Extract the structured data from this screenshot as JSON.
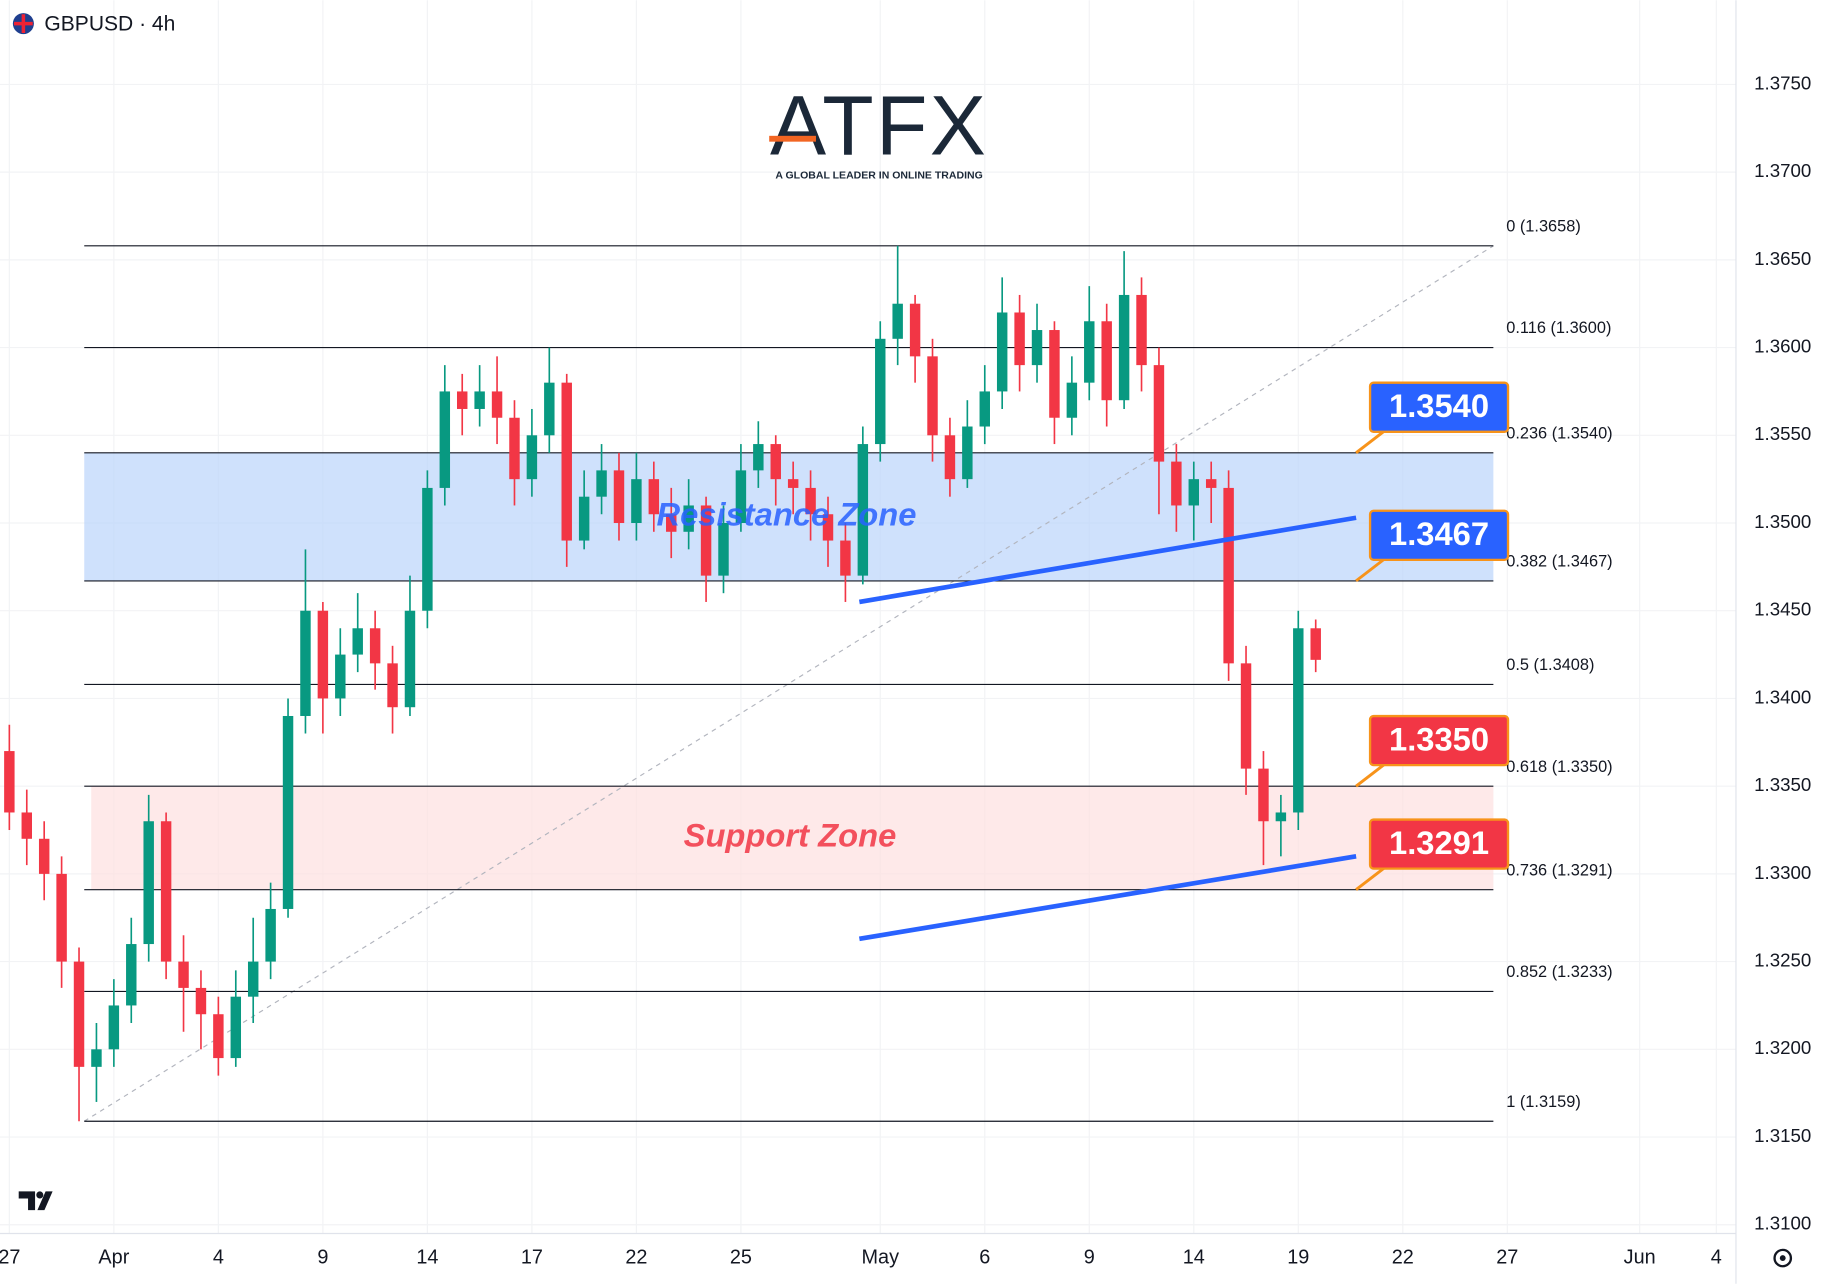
{
  "header": {
    "symbol": "GBPUSD · 4h"
  },
  "logo": {
    "brand": "ATFX",
    "tagline": "A GLOBAL LEADER IN ONLINE TRADING"
  },
  "chart_data": {
    "type": "candlestick",
    "xlim": [
      -0.2685,
      49.564
    ],
    "ylim": [
      1.3095,
      1.3798
    ],
    "grid": true,
    "up_color": "#089981",
    "down_color": "#f23645",
    "xticks": [
      {
        "value": 0,
        "label": "27"
      },
      {
        "value": 3,
        "label": "Apr"
      },
      {
        "value": 6,
        "label": "4"
      },
      {
        "value": 9,
        "label": "9"
      },
      {
        "value": 12,
        "label": "14"
      },
      {
        "value": 15,
        "label": "17"
      },
      {
        "value": 18,
        "label": "22"
      },
      {
        "value": 21,
        "label": "25"
      },
      {
        "value": 25,
        "label": "May"
      },
      {
        "value": 28,
        "label": "6"
      },
      {
        "value": 31,
        "label": "9"
      },
      {
        "value": 34,
        "label": "14"
      },
      {
        "value": 37,
        "label": "19"
      },
      {
        "value": 40,
        "label": "22"
      },
      {
        "value": 43,
        "label": "27"
      },
      {
        "value": 46.8,
        "label": "Jun"
      },
      {
        "value": 49,
        "label": "4"
      }
    ],
    "yticks": [
      {
        "value": 1.31,
        "label": "1.3100"
      },
      {
        "value": 1.315,
        "label": "1.3150"
      },
      {
        "value": 1.32,
        "label": "1.3200"
      },
      {
        "value": 1.325,
        "label": "1.3250"
      },
      {
        "value": 1.33,
        "label": "1.3300"
      },
      {
        "value": 1.335,
        "label": "1.3350"
      },
      {
        "value": 1.34,
        "label": "1.3400"
      },
      {
        "value": 1.345,
        "label": "1.3450"
      },
      {
        "value": 1.35,
        "label": "1.3500"
      },
      {
        "value": 1.355,
        "label": "1.3550"
      },
      {
        "value": 1.36,
        "label": "1.3600"
      },
      {
        "value": 1.365,
        "label": "1.3650"
      },
      {
        "value": 1.37,
        "label": "1.3700"
      },
      {
        "value": 1.375,
        "label": "1.3750"
      }
    ],
    "candles": {
      "x": [
        0,
        0.5,
        1,
        1.5,
        2,
        2.5,
        3,
        3.5,
        4,
        4.5,
        5,
        5.5,
        6,
        6.5,
        7,
        7.5,
        8,
        8.5,
        9,
        9.5,
        10,
        10.5,
        11,
        11.5,
        12,
        12.5,
        13,
        13.5,
        14,
        14.5,
        15,
        15.5,
        16,
        16.5,
        17,
        17.5,
        18,
        18.5,
        19,
        19.5,
        20,
        20.5,
        21,
        21.5,
        22,
        22.5,
        23,
        23.5,
        24,
        24.5,
        25,
        25.5,
        26,
        26.5,
        27,
        27.5,
        28,
        28.5,
        29,
        29.5,
        30,
        30.5,
        31,
        31.5,
        32,
        32.5,
        33,
        33.5,
        34,
        34.5,
        35,
        35.5,
        36,
        36.5,
        37,
        37.5
      ],
      "open": [
        1.337,
        1.3335,
        1.332,
        1.33,
        1.325,
        1.319,
        1.32,
        1.3225,
        1.326,
        1.333,
        1.325,
        1.3235,
        1.322,
        1.3195,
        1.323,
        1.325,
        1.328,
        1.339,
        1.345,
        1.34,
        1.3425,
        1.344,
        1.342,
        1.3395,
        1.345,
        1.352,
        1.3575,
        1.3565,
        1.3575,
        1.356,
        1.3525,
        1.355,
        1.358,
        1.349,
        1.3515,
        1.353,
        1.35,
        1.3525,
        1.3505,
        1.3495,
        1.351,
        1.347,
        1.35,
        1.353,
        1.3545,
        1.3525,
        1.352,
        1.3505,
        1.349,
        1.347,
        1.3545,
        1.3605,
        1.3625,
        1.3595,
        1.355,
        1.3525,
        1.3555,
        1.3575,
        1.362,
        1.359,
        1.361,
        1.356,
        1.358,
        1.3615,
        1.357,
        1.363,
        1.359,
        1.3535,
        1.351,
        1.3525,
        1.352,
        1.342,
        1.336,
        1.333,
        1.3335,
        1.344
      ],
      "high": [
        1.3385,
        1.3348,
        1.333,
        1.331,
        1.3258,
        1.3215,
        1.324,
        1.3275,
        1.3345,
        1.3335,
        1.3265,
        1.3245,
        1.323,
        1.3245,
        1.3275,
        1.3295,
        1.34,
        1.3485,
        1.3455,
        1.344,
        1.346,
        1.345,
        1.343,
        1.347,
        1.353,
        1.359,
        1.3585,
        1.359,
        1.3595,
        1.357,
        1.3565,
        1.36,
        1.3585,
        1.353,
        1.3545,
        1.354,
        1.354,
        1.3535,
        1.352,
        1.3525,
        1.3515,
        1.351,
        1.3545,
        1.3558,
        1.355,
        1.3535,
        1.353,
        1.3515,
        1.35,
        1.3555,
        1.3615,
        1.3658,
        1.363,
        1.3605,
        1.356,
        1.357,
        1.359,
        1.364,
        1.363,
        1.3625,
        1.3615,
        1.3595,
        1.3635,
        1.3625,
        1.3655,
        1.364,
        1.36,
        1.3545,
        1.3535,
        1.3535,
        1.353,
        1.343,
        1.337,
        1.3345,
        1.345,
        1.3445
      ],
      "low": [
        1.3325,
        1.3305,
        1.3285,
        1.3235,
        1.3159,
        1.317,
        1.319,
        1.3215,
        1.325,
        1.324,
        1.321,
        1.32,
        1.3185,
        1.319,
        1.3215,
        1.324,
        1.3275,
        1.338,
        1.338,
        1.339,
        1.3415,
        1.3405,
        1.338,
        1.339,
        1.344,
        1.351,
        1.355,
        1.3555,
        1.3545,
        1.351,
        1.3515,
        1.354,
        1.3475,
        1.3485,
        1.3505,
        1.349,
        1.349,
        1.3495,
        1.348,
        1.3485,
        1.3455,
        1.346,
        1.3495,
        1.352,
        1.351,
        1.3505,
        1.349,
        1.3475,
        1.3455,
        1.3465,
        1.3535,
        1.359,
        1.358,
        1.3535,
        1.3515,
        1.352,
        1.3545,
        1.3565,
        1.3575,
        1.358,
        1.3545,
        1.355,
        1.357,
        1.3555,
        1.3565,
        1.3575,
        1.3505,
        1.3495,
        1.349,
        1.35,
        1.341,
        1.3345,
        1.3305,
        1.331,
        1.3325,
        1.3415
      ],
      "close": [
        1.3335,
        1.332,
        1.33,
        1.325,
        1.319,
        1.32,
        1.3225,
        1.326,
        1.333,
        1.325,
        1.3235,
        1.322,
        1.3195,
        1.323,
        1.325,
        1.328,
        1.339,
        1.345,
        1.34,
        1.3425,
        1.344,
        1.342,
        1.3395,
        1.345,
        1.352,
        1.3575,
        1.3565,
        1.3575,
        1.356,
        1.3525,
        1.355,
        1.358,
        1.349,
        1.3515,
        1.353,
        1.35,
        1.3525,
        1.3505,
        1.3495,
        1.351,
        1.347,
        1.35,
        1.353,
        1.3545,
        1.3525,
        1.352,
        1.3505,
        1.349,
        1.347,
        1.3545,
        1.3605,
        1.3625,
        1.3595,
        1.355,
        1.3525,
        1.3555,
        1.3575,
        1.362,
        1.359,
        1.361,
        1.356,
        1.358,
        1.3615,
        1.357,
        1.363,
        1.359,
        1.3535,
        1.351,
        1.3525,
        1.352,
        1.342,
        1.336,
        1.333,
        1.3335,
        1.344,
        1.3422
      ]
    },
    "fib_range": {
      "x": [
        2.15,
        42.6
      ],
      "line_color": "#131722"
    },
    "fib_levels": [
      {
        "label": "0 (1.3658)",
        "value": 1.3658
      },
      {
        "label": "0.116 (1.3600)",
        "value": 1.36
      },
      {
        "label": "0.236 (1.3540)",
        "value": 1.354
      },
      {
        "label": "0.382 (1.3467)",
        "value": 1.3467
      },
      {
        "label": "0.5 (1.3408)",
        "value": 1.3408
      },
      {
        "label": "0.618 (1.3350)",
        "value": 1.335
      },
      {
        "label": "0.736 (1.3291)",
        "value": 1.3291
      },
      {
        "label": "0.852 (1.3233)",
        "value": 1.3233
      },
      {
        "label": "1 (1.3159)",
        "value": 1.3159
      }
    ],
    "zones": [
      {
        "label": "Resistance Zone",
        "range": [
          1.3467,
          1.354
        ],
        "x": [
          2.15,
          42.6
        ],
        "fill": "#bbd4fb",
        "text_color": "#2962ff"
      },
      {
        "label": "Support Zone",
        "range": [
          1.3291,
          1.335
        ],
        "x": [
          2.35,
          42.6
        ],
        "fill": "#fde0e0",
        "text_color": "#f23645"
      }
    ],
    "trendlines": [
      {
        "x": [
          24.4,
          38.66
        ],
        "y": [
          1.3455,
          1.3503
        ],
        "color": "#2962ff"
      },
      {
        "x": [
          24.4,
          38.66
        ],
        "y": [
          1.3263,
          1.331
        ],
        "color": "#2962ff"
      }
    ],
    "price_flags": [
      {
        "value": 1.354,
        "label": "1.3540",
        "color": "#2962ff"
      },
      {
        "value": 1.3467,
        "label": "1.3467",
        "color": "#2962ff"
      },
      {
        "value": 1.335,
        "label": "1.3350",
        "color": "#f23645"
      },
      {
        "value": 1.3291,
        "label": "1.3291",
        "color": "#f23645"
      }
    ]
  }
}
